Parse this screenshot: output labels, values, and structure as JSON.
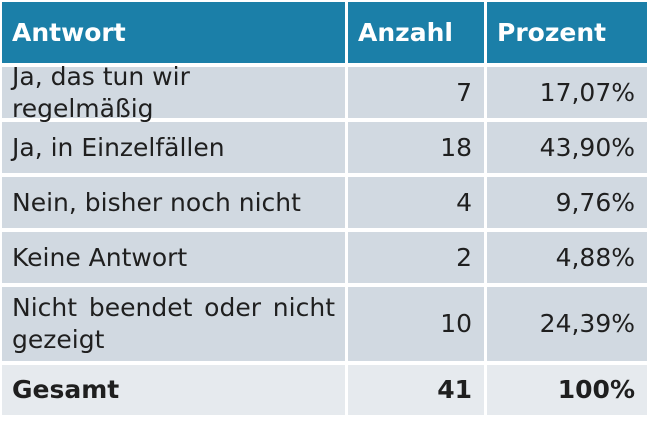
{
  "table": {
    "headers": {
      "answer": "Antwort",
      "count": "Anzahl",
      "percent": "Prozent"
    },
    "rows": [
      {
        "answer": "Ja, das tun wir regelmäßig",
        "count": "7",
        "percent": "17,07%"
      },
      {
        "answer": "Ja, in Einzelfällen",
        "count": "18",
        "percent": "43,90%"
      },
      {
        "answer": "Nein, bisher noch nicht",
        "count": "4",
        "percent": "9,76%"
      },
      {
        "answer": "Keine Antwort",
        "count": "2",
        "percent": "4,88%"
      },
      {
        "answer": "Nicht beendet oder nicht gezeigt",
        "count": "10",
        "percent": "24,39%"
      }
    ],
    "total": {
      "answer": "Gesamt",
      "count": "41",
      "percent": "100%"
    }
  },
  "colors": {
    "header_bg": "#1b7fa8",
    "row_bg": "#d1d9e1",
    "total_bg": "#e6eaee"
  }
}
